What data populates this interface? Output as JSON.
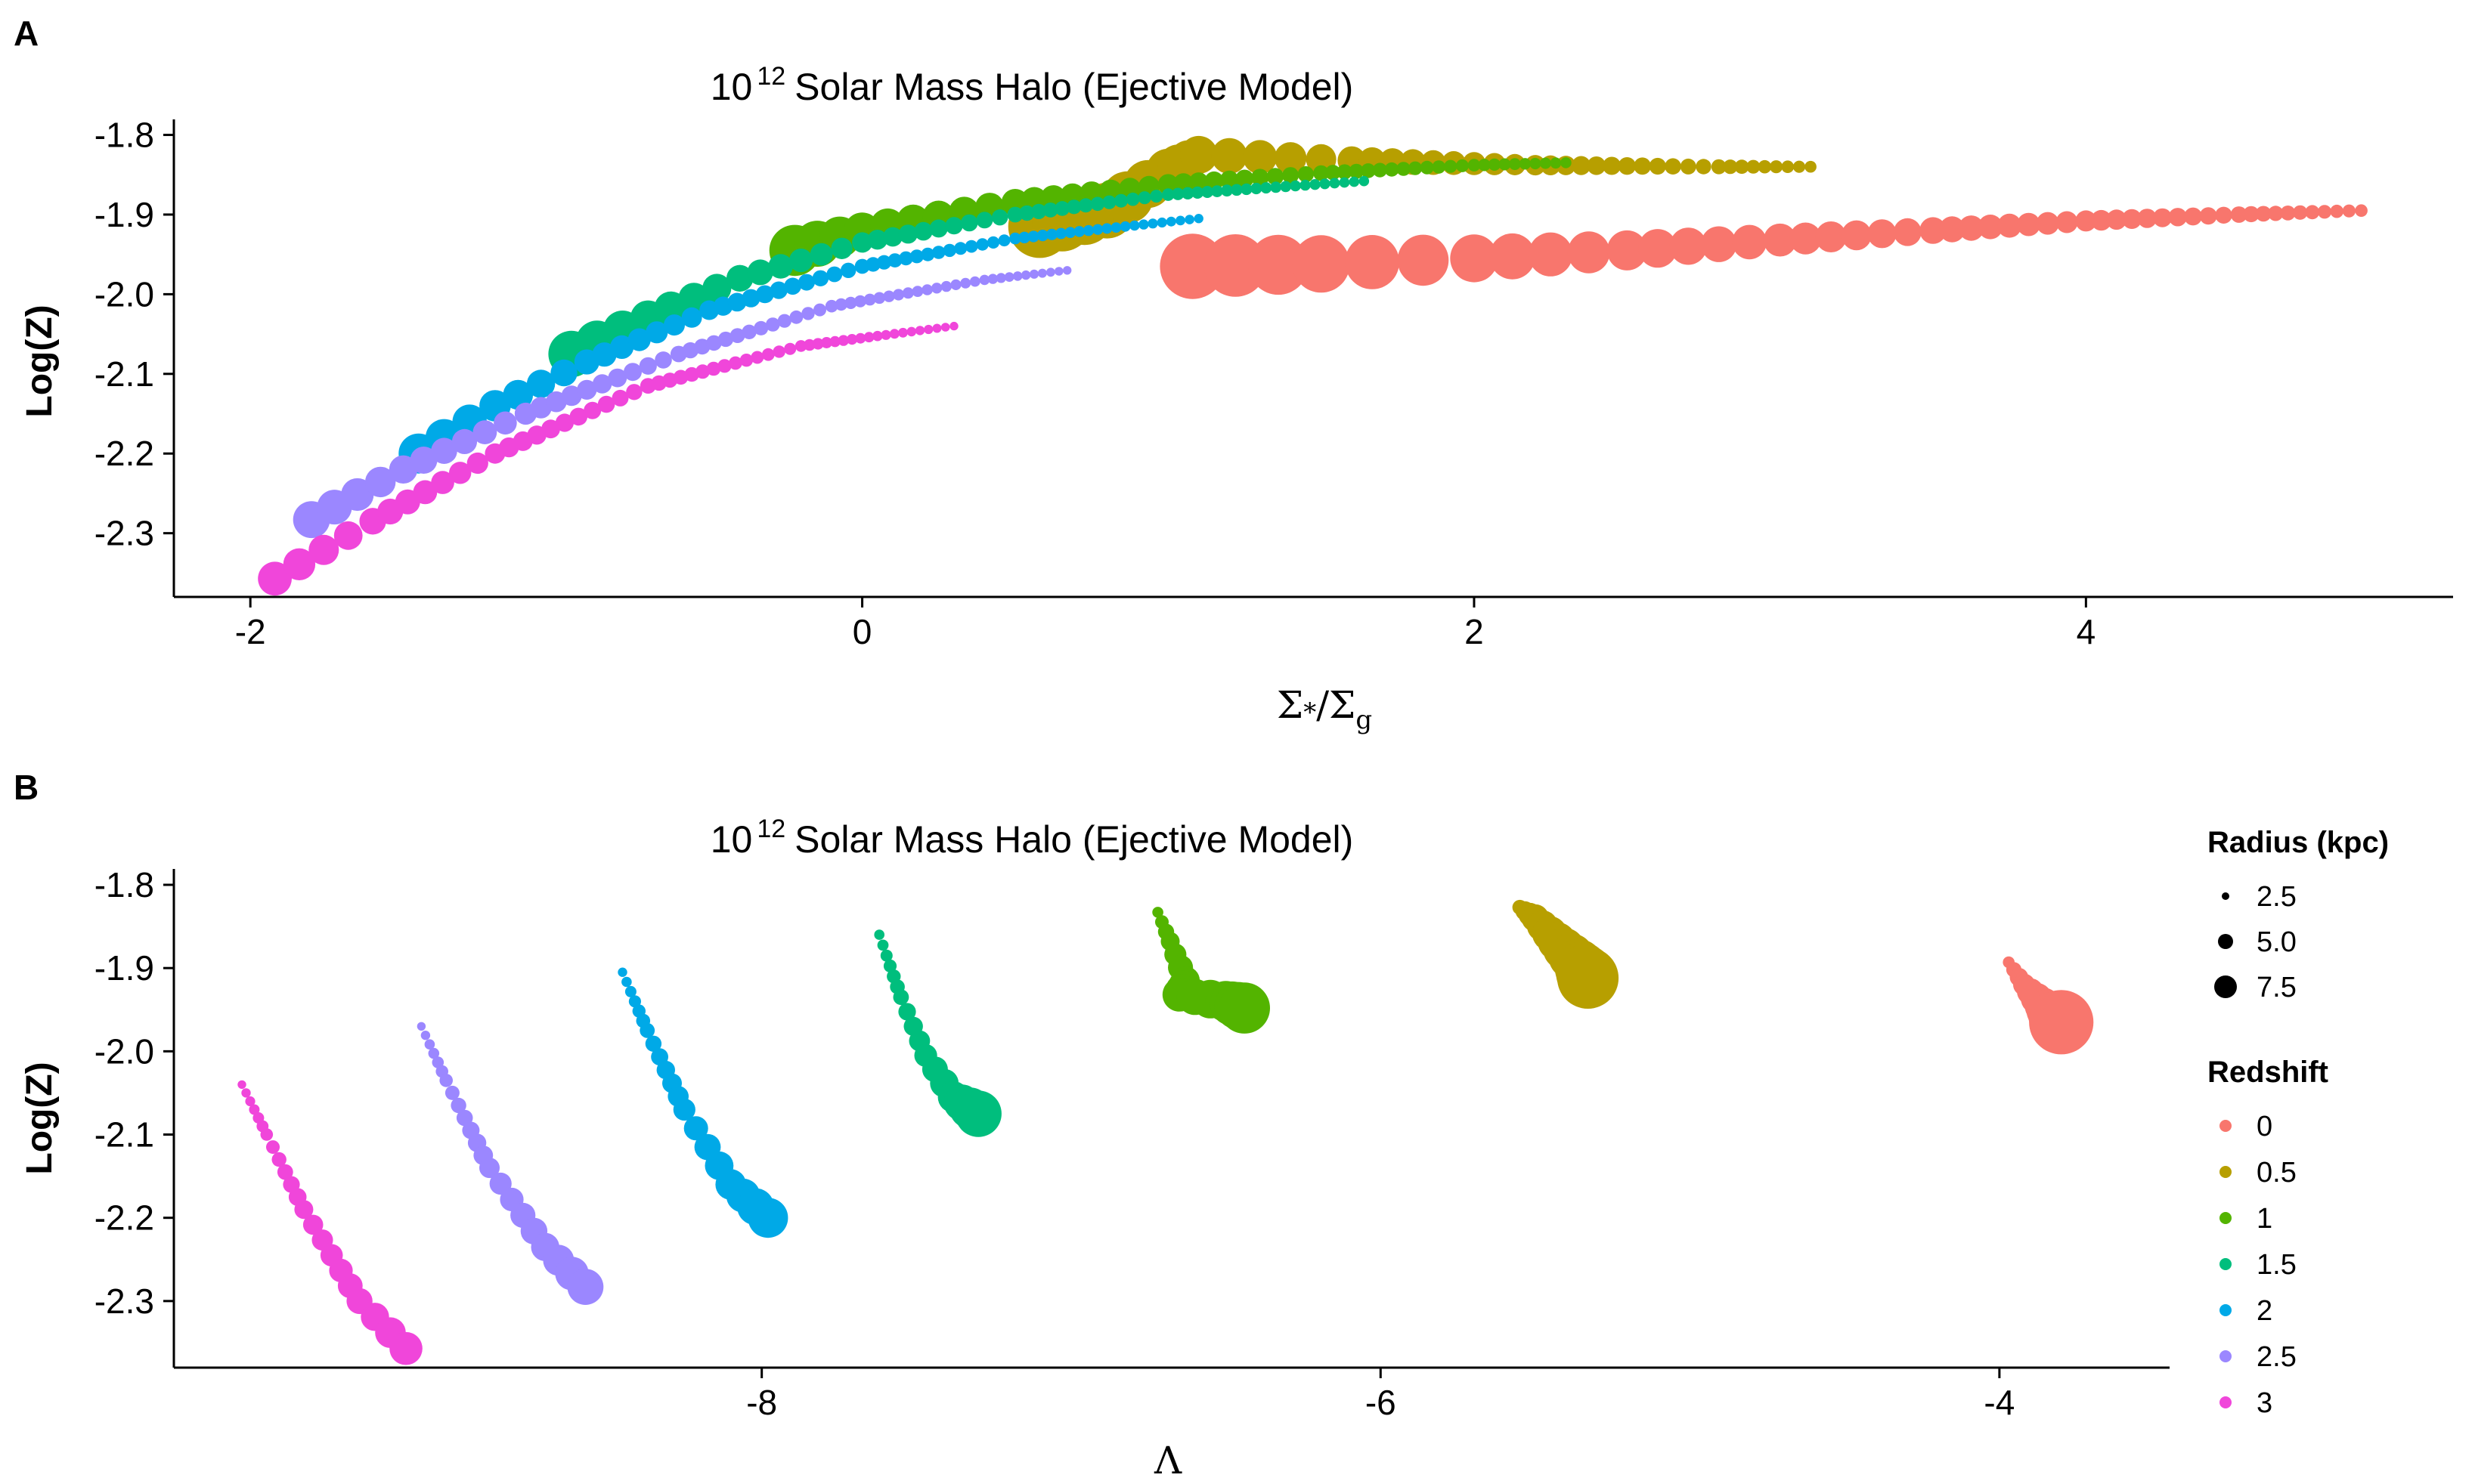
{
  "figure": {
    "panels": [
      {
        "label": "A",
        "title_base": "10",
        "title_exp": "12",
        "title_rest": "Solar Mass Halo (Ejective Model)"
      },
      {
        "label": "B",
        "title_base": "10",
        "title_exp": "12",
        "title_rest": "Solar Mass Halo (Ejective Model)"
      }
    ]
  },
  "legend": {
    "size_title": "Radius (kpc)",
    "size_entries": [
      {
        "label": "2.5",
        "value": 2.5
      },
      {
        "label": "5.0",
        "value": 5.0
      },
      {
        "label": "7.5",
        "value": 7.5
      }
    ],
    "color_title": "Redshift",
    "color_entries": [
      {
        "label": "0",
        "color": "#F8766D"
      },
      {
        "label": "0.5",
        "color": "#B79F00"
      },
      {
        "label": "1",
        "color": "#53B400"
      },
      {
        "label": "1.5",
        "color": "#00BE7D"
      },
      {
        "label": "2",
        "color": "#00A9E7"
      },
      {
        "label": "2.5",
        "color": "#9B87FF"
      },
      {
        "label": "3",
        "color": "#F046DA"
      }
    ]
  },
  "chart_data": [
    {
      "type": "scatter",
      "panel": "A",
      "title": "10^12 Solar Mass Halo (Ejective Model)",
      "xlabel": "Σ*/Σg",
      "ylabel": "Log(Z)",
      "xlim": [
        -2.25,
        5.2
      ],
      "ylim": [
        -2.38,
        -1.79
      ],
      "xticks": [
        -2,
        0,
        2,
        4
      ],
      "yticks": [
        -2.3,
        -2.2,
        -2.1,
        -2.0,
        -1.9,
        -1.8
      ],
      "grid": false,
      "series": [
        {
          "name": "0",
          "color": "#F8766D",
          "points": [
            [
              1.08,
              -1.965,
              8.3
            ],
            [
              1.5,
              -1.962,
              7.3
            ],
            [
              2.0,
              -1.955,
              6.1
            ],
            [
              2.5,
              -1.945,
              5.1
            ],
            [
              3.0,
              -1.932,
              4.2
            ],
            [
              3.5,
              -1.92,
              3.4
            ],
            [
              4.0,
              -1.908,
              2.7
            ],
            [
              4.5,
              -1.9,
              2.1
            ],
            [
              4.9,
              -1.895,
              1.6
            ]
          ]
        },
        {
          "name": "0.5",
          "color": "#B79F00",
          "points": [
            [
              0.58,
              -1.915,
              8.0
            ],
            [
              0.8,
              -1.895,
              7.1
            ],
            [
              1.0,
              -1.845,
              5.6
            ],
            [
              1.1,
              -1.825,
              4.8
            ],
            [
              1.6,
              -1.832,
              3.6
            ],
            [
              2.2,
              -1.838,
              2.6
            ],
            [
              2.8,
              -1.84,
              1.9
            ],
            [
              3.1,
              -1.84,
              1.5
            ]
          ]
        },
        {
          "name": "1",
          "color": "#53B400",
          "points": [
            [
              -0.22,
              -1.945,
              6.5
            ],
            [
              0.0,
              -1.92,
              4.6
            ],
            [
              0.5,
              -1.885,
              3.5
            ],
            [
              1.0,
              -1.862,
              2.6
            ],
            [
              1.5,
              -1.848,
              2.0
            ],
            [
              2.0,
              -1.838,
              1.6
            ],
            [
              2.3,
              -1.835,
              1.4
            ]
          ]
        },
        {
          "name": "1.5",
          "color": "#00BE7D",
          "points": [
            [
              -0.95,
              -2.075,
              5.9
            ],
            [
              -0.7,
              -2.03,
              4.5
            ],
            [
              -0.4,
              -1.98,
              3.4
            ],
            [
              0.0,
              -1.935,
              2.6
            ],
            [
              0.5,
              -1.9,
              2.0
            ],
            [
              1.0,
              -1.875,
              1.6
            ],
            [
              1.64,
              -1.858,
              1.3
            ]
          ]
        },
        {
          "name": "2",
          "color": "#00A9E7",
          "points": [
            [
              -1.45,
              -2.2,
              5.1
            ],
            [
              -1.2,
              -2.14,
              4.0
            ],
            [
              -0.9,
              -2.085,
              3.2
            ],
            [
              -0.5,
              -2.02,
              2.5
            ],
            [
              0.0,
              -1.965,
              1.9
            ],
            [
              0.5,
              -1.93,
              1.5
            ],
            [
              1.1,
              -1.905,
              1.2
            ]
          ]
        },
        {
          "name": "2.5",
          "color": "#9B87FF",
          "points": [
            [
              -1.8,
              -2.283,
              4.7
            ],
            [
              -1.5,
              -2.22,
              3.6
            ],
            [
              -1.1,
              -2.15,
              2.8
            ],
            [
              -0.6,
              -2.075,
              2.1
            ],
            [
              -0.1,
              -2.015,
              1.6
            ],
            [
              0.4,
              -1.982,
              1.3
            ],
            [
              0.67,
              -1.97,
              1.1
            ]
          ]
        },
        {
          "name": "3",
          "color": "#F046DA",
          "points": [
            [
              -1.92,
              -2.357,
              4.3
            ],
            [
              -1.6,
              -2.285,
              3.4
            ],
            [
              -1.2,
              -2.2,
              2.6
            ],
            [
              -0.7,
              -2.115,
              2.0
            ],
            [
              -0.2,
              -2.065,
              1.5
            ],
            [
              0.3,
              -2.04,
              1.1
            ]
          ]
        }
      ]
    },
    {
      "type": "scatter",
      "panel": "B",
      "title": "10^12 Solar Mass Halo (Ejective Model)",
      "xlabel": "Λ",
      "ylabel": "Log(Z)",
      "xlim": [
        -9.9,
        -3.45
      ],
      "ylim": [
        -2.38,
        -1.79
      ],
      "xticks": [
        -8,
        -6,
        -4
      ],
      "yticks": [
        -2.3,
        -2.2,
        -2.1,
        -2.0,
        -1.9,
        -1.8
      ],
      "grid": false,
      "series": [
        {
          "name": "0",
          "color": "#F8766D",
          "points": [
            [
              -3.97,
              -1.893,
              1.5
            ],
            [
              -3.92,
              -1.92,
              2.8
            ],
            [
              -3.86,
              -1.945,
              4.6
            ],
            [
              -3.82,
              -1.962,
              6.4
            ],
            [
              -3.8,
              -1.965,
              8.2
            ]
          ]
        },
        {
          "name": "0.5",
          "color": "#B79F00",
          "points": [
            [
              -5.55,
              -1.827,
              1.9
            ],
            [
              -5.5,
              -1.84,
              3.5
            ],
            [
              -5.43,
              -1.868,
              4.9
            ],
            [
              -5.36,
              -1.895,
              6.3
            ],
            [
              -5.33,
              -1.912,
              7.8
            ]
          ]
        },
        {
          "name": "1",
          "color": "#53B400",
          "points": [
            [
              -6.72,
              -1.833,
              1.4
            ],
            [
              -6.68,
              -1.868,
              2.4
            ],
            [
              -6.63,
              -1.915,
              3.6
            ],
            [
              -6.65,
              -1.932,
              4.3
            ],
            [
              -6.5,
              -1.94,
              5.2
            ],
            [
              -6.44,
              -1.948,
              6.5
            ]
          ]
        },
        {
          "name": "1.5",
          "color": "#00BE7D",
          "points": [
            [
              -7.62,
              -1.86,
              1.3
            ],
            [
              -7.55,
              -1.935,
              2.0
            ],
            [
              -7.47,
              -2.005,
              2.9
            ],
            [
              -7.38,
              -2.055,
              4.0
            ],
            [
              -7.3,
              -2.075,
              5.9
            ]
          ]
        },
        {
          "name": "2",
          "color": "#00A9E7",
          "points": [
            [
              -8.45,
              -1.905,
              1.2
            ],
            [
              -8.37,
              -1.975,
              1.9
            ],
            [
              -8.25,
              -2.07,
              2.8
            ],
            [
              -8.1,
              -2.16,
              3.9
            ],
            [
              -7.98,
              -2.2,
              5.1
            ]
          ]
        },
        {
          "name": "2.5",
          "color": "#9B87FF",
          "points": [
            [
              -9.1,
              -1.97,
              1.1
            ],
            [
              -9.02,
              -2.035,
              1.7
            ],
            [
              -8.88,
              -2.14,
              2.6
            ],
            [
              -8.7,
              -2.235,
              3.6
            ],
            [
              -8.57,
              -2.283,
              4.6
            ]
          ]
        },
        {
          "name": "3",
          "color": "#F046DA",
          "points": [
            [
              -9.68,
              -2.04,
              1.1
            ],
            [
              -9.6,
              -2.1,
              1.6
            ],
            [
              -9.48,
              -2.19,
              2.4
            ],
            [
              -9.3,
              -2.3,
              3.3
            ],
            [
              -9.15,
              -2.357,
              4.2
            ]
          ]
        }
      ]
    }
  ]
}
